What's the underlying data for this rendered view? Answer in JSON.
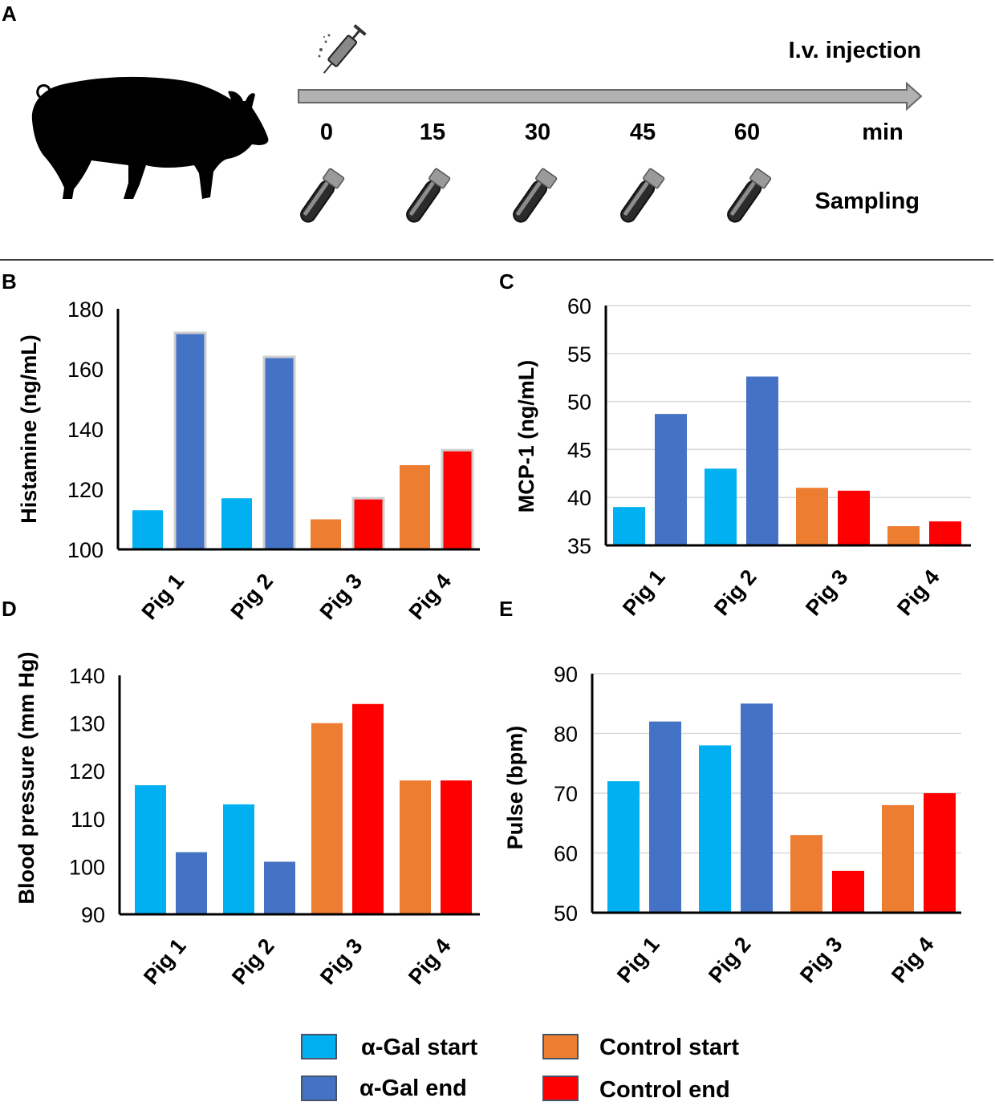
{
  "panels": {
    "a": "A",
    "b": "B",
    "c": "C",
    "d": "D",
    "e": "E"
  },
  "timeline": {
    "injection_label": "I.v. injection",
    "times": [
      "0",
      "15",
      "30",
      "45",
      "60"
    ],
    "unit": "min",
    "sampling_label": "Sampling"
  },
  "colors": {
    "agal_start": "#00B0F0",
    "agal_end": "#4472C4",
    "control_start": "#ED7D31",
    "control_end": "#FF0000"
  },
  "legend": {
    "agal_start": "α-Gal start",
    "agal_end": "α-Gal end",
    "control_start": "Control start",
    "control_end": "Control end"
  },
  "chart_data": [
    {
      "id": "histamine",
      "type": "bar",
      "ylabel": "Histamine (ng/mL)",
      "ylim": [
        100,
        180
      ],
      "yticks": [
        100,
        120,
        140,
        160,
        180
      ],
      "grid": false,
      "categories": [
        "Pig 1",
        "Pig 2",
        "Pig 3",
        "Pig 4"
      ],
      "series": [
        {
          "name": "start",
          "values": [
            113,
            117,
            110,
            128
          ]
        },
        {
          "name": "end",
          "values": [
            172,
            164,
            117,
            133
          ]
        }
      ]
    },
    {
      "id": "mcp1",
      "type": "bar",
      "ylabel": "MCP-1 (ng/mL)",
      "ylim": [
        35,
        60
      ],
      "yticks": [
        35,
        40,
        45,
        50,
        55,
        60
      ],
      "grid": true,
      "categories": [
        "Pig 1",
        "Pig 2",
        "Pig 3",
        "Pig 4"
      ],
      "series": [
        {
          "name": "start",
          "values": [
            39,
            43,
            41,
            37
          ]
        },
        {
          "name": "end",
          "values": [
            48.7,
            52.6,
            40.7,
            37.5
          ]
        }
      ]
    },
    {
      "id": "blood_pressure",
      "type": "bar",
      "ylabel": "Blood pressure (mm Hg)",
      "ylim": [
        90,
        140
      ],
      "yticks": [
        90,
        100,
        110,
        120,
        130,
        140
      ],
      "grid": false,
      "categories": [
        "Pig 1",
        "Pig 2",
        "Pig 3",
        "Pig 4"
      ],
      "series": [
        {
          "name": "start",
          "values": [
            117,
            113,
            130,
            118
          ]
        },
        {
          "name": "end",
          "values": [
            103,
            101,
            134,
            118
          ]
        }
      ]
    },
    {
      "id": "pulse",
      "type": "bar",
      "ylabel": "Pulse (bpm)",
      "ylim": [
        50,
        90
      ],
      "yticks": [
        50,
        60,
        70,
        80,
        90
      ],
      "grid": true,
      "categories": [
        "Pig 1",
        "Pig 2",
        "Pig 3",
        "Pig 4"
      ],
      "series": [
        {
          "name": "start",
          "values": [
            72,
            78,
            63,
            68
          ]
        },
        {
          "name": "end",
          "values": [
            82,
            85,
            57,
            70
          ]
        }
      ]
    }
  ]
}
